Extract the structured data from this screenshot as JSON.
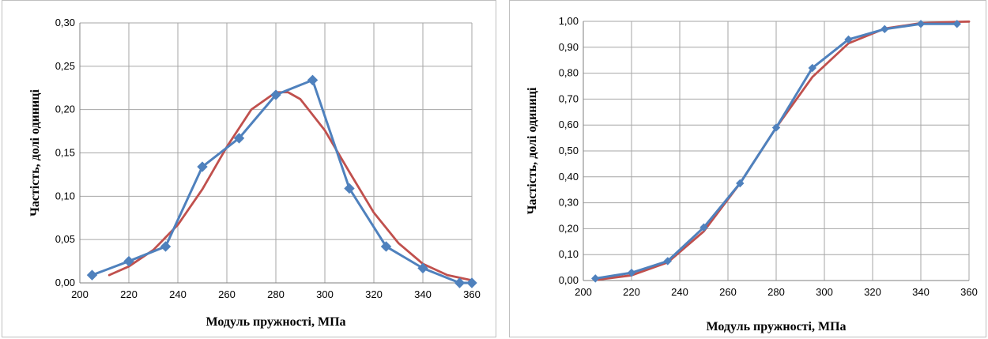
{
  "charts": [
    {
      "type": "line",
      "xlabel": "Модуль пружності, МПа",
      "ylabel": "Частість, долі одиниці",
      "xlim": [
        200,
        360
      ],
      "ylim": [
        0,
        0.3
      ],
      "xticks": [
        200,
        220,
        240,
        260,
        280,
        300,
        320,
        340,
        360
      ],
      "xtick_labels": [
        "200",
        "220",
        "240",
        "260",
        "280",
        "300",
        "320",
        "340",
        "360"
      ],
      "yticks": [
        0,
        0.05,
        0.1,
        0.15,
        0.2,
        0.25,
        0.3
      ],
      "ytick_labels": [
        "0,00",
        "0,05",
        "0,10",
        "0,15",
        "0,20",
        "0,25",
        "0,30"
      ],
      "grid": true,
      "series": [
        {
          "kind": "line",
          "color": "#C0504D",
          "x": [
            212,
            220,
            230,
            240,
            250,
            260,
            270,
            280,
            285,
            290,
            300,
            310,
            320,
            330,
            340,
            350,
            360
          ],
          "y": [
            0.009,
            0.019,
            0.038,
            0.067,
            0.108,
            0.157,
            0.2,
            0.22,
            0.22,
            0.212,
            0.176,
            0.128,
            0.081,
            0.046,
            0.022,
            0.009,
            0.003
          ]
        },
        {
          "kind": "line-markers",
          "color": "#4F81BD",
          "x": [
            205,
            220,
            235,
            250,
            265,
            280,
            295,
            310,
            325,
            340,
            355,
            360
          ],
          "y": [
            0.009,
            0.025,
            0.042,
            0.134,
            0.167,
            0.217,
            0.234,
            0.109,
            0.042,
            0.017,
            0.0,
            0.0
          ]
        }
      ]
    },
    {
      "type": "line",
      "xlabel": "Модуль пружності, МПа",
      "ylabel": "Частість, долі одиниці",
      "xlim": [
        200,
        360
      ],
      "ylim": [
        0,
        1.0
      ],
      "xticks": [
        200,
        220,
        240,
        260,
        280,
        300,
        320,
        340,
        360
      ],
      "xtick_labels": [
        "200",
        "220",
        "240",
        "260",
        "280",
        "300",
        "320",
        "340",
        "360"
      ],
      "yticks": [
        0,
        0.1,
        0.2,
        0.3,
        0.4,
        0.5,
        0.6,
        0.7,
        0.8,
        0.9,
        1.0
      ],
      "ytick_labels": [
        "0,00",
        "0,10",
        "0,20",
        "0,30",
        "0,40",
        "0,50",
        "0,60",
        "0,70",
        "0,80",
        "0,90",
        "1,00"
      ],
      "grid": true,
      "series": [
        {
          "kind": "line",
          "color": "#C0504D",
          "x": [
            205,
            220,
            235,
            250,
            265,
            280,
            295,
            310,
            325,
            340,
            355,
            360
          ],
          "y": [
            0.002,
            0.02,
            0.07,
            0.19,
            0.375,
            0.59,
            0.785,
            0.915,
            0.972,
            0.993,
            0.998,
            0.999
          ]
        },
        {
          "kind": "line-markers",
          "color": "#4F81BD",
          "x": [
            205,
            220,
            235,
            250,
            265,
            280,
            295,
            310,
            325,
            340,
            355
          ],
          "y": [
            0.008,
            0.03,
            0.075,
            0.205,
            0.375,
            0.59,
            0.82,
            0.93,
            0.97,
            0.99,
            0.99
          ]
        }
      ]
    }
  ]
}
